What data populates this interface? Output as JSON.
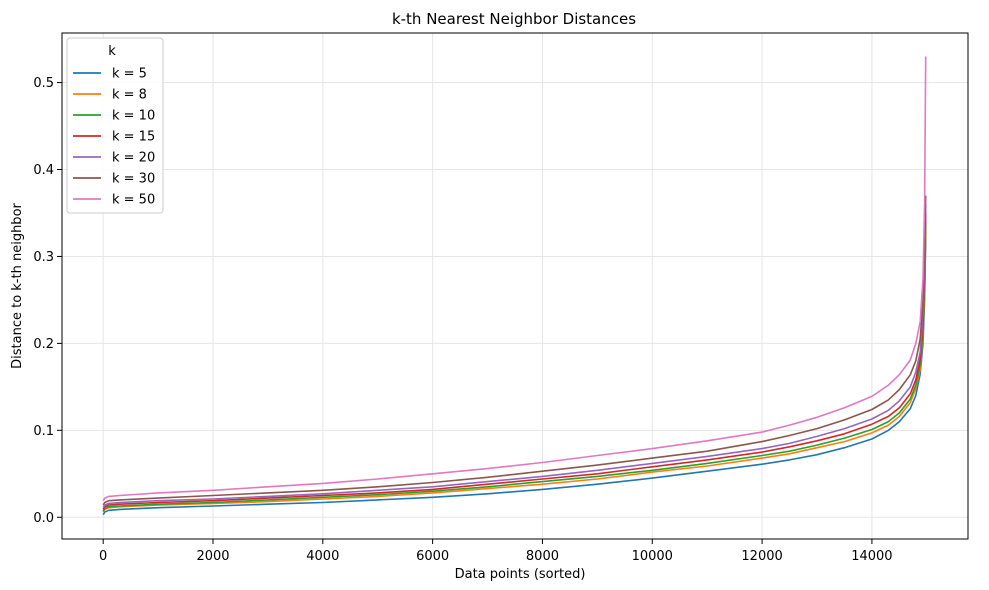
{
  "chart_data": {
    "type": "line",
    "title": "k-th Nearest Neighbor Distances",
    "xlabel": "Data points (sorted)",
    "ylabel": "Distance to k-th neighbor",
    "xlim": [
      -750,
      15750
    ],
    "ylim": [
      -0.025,
      0.557
    ],
    "xticks": [
      0,
      2000,
      4000,
      6000,
      8000,
      10000,
      12000,
      14000
    ],
    "yticks": [
      0.0,
      0.1,
      0.2,
      0.3,
      0.4,
      0.5
    ],
    "xtick_labels": [
      "0",
      "2000",
      "4000",
      "6000",
      "8000",
      "10000",
      "12000",
      "14000"
    ],
    "ytick_labels": [
      "0.0",
      "0.1",
      "0.2",
      "0.3",
      "0.4",
      "0.5"
    ],
    "grid": true,
    "legend": {
      "title": "k",
      "placement": "top-left"
    },
    "x": [
      0,
      30,
      100,
      300,
      1000,
      2000,
      3000,
      4000,
      5000,
      6000,
      7000,
      8000,
      9000,
      10000,
      11000,
      12000,
      12500,
      13000,
      13500,
      14000,
      14300,
      14500,
      14700,
      14800,
      14880,
      14930,
      14960,
      14980
    ],
    "series": [
      {
        "name": "k = 5",
        "color": "#1f77b4",
        "values": [
          0.003,
          0.006,
          0.008,
          0.009,
          0.011,
          0.013,
          0.015,
          0.017,
          0.02,
          0.023,
          0.027,
          0.032,
          0.038,
          0.045,
          0.053,
          0.061,
          0.066,
          0.072,
          0.08,
          0.09,
          0.1,
          0.11,
          0.125,
          0.14,
          0.165,
          0.2,
          0.25,
          0.32
        ]
      },
      {
        "name": "k = 8",
        "color": "#ff7f0e",
        "values": [
          0.006,
          0.009,
          0.011,
          0.012,
          0.014,
          0.016,
          0.018,
          0.021,
          0.024,
          0.028,
          0.033,
          0.038,
          0.044,
          0.052,
          0.059,
          0.068,
          0.073,
          0.08,
          0.087,
          0.097,
          0.106,
          0.116,
          0.132,
          0.148,
          0.17,
          0.21,
          0.26,
          0.33
        ]
      },
      {
        "name": "k = 10",
        "color": "#2ca02c",
        "values": [
          0.007,
          0.01,
          0.012,
          0.013,
          0.015,
          0.017,
          0.02,
          0.023,
          0.026,
          0.03,
          0.035,
          0.041,
          0.047,
          0.054,
          0.062,
          0.071,
          0.076,
          0.083,
          0.091,
          0.101,
          0.11,
          0.12,
          0.136,
          0.152,
          0.175,
          0.215,
          0.265,
          0.34
        ]
      },
      {
        "name": "k = 15",
        "color": "#d62728",
        "values": [
          0.009,
          0.012,
          0.014,
          0.015,
          0.017,
          0.019,
          0.022,
          0.025,
          0.028,
          0.032,
          0.038,
          0.044,
          0.05,
          0.058,
          0.066,
          0.075,
          0.081,
          0.088,
          0.096,
          0.107,
          0.116,
          0.126,
          0.142,
          0.158,
          0.182,
          0.225,
          0.28,
          0.35
        ]
      },
      {
        "name": "k = 20",
        "color": "#9467bd",
        "values": [
          0.011,
          0.014,
          0.016,
          0.017,
          0.019,
          0.021,
          0.024,
          0.027,
          0.031,
          0.035,
          0.041,
          0.047,
          0.054,
          0.062,
          0.07,
          0.079,
          0.085,
          0.093,
          0.102,
          0.113,
          0.123,
          0.134,
          0.15,
          0.167,
          0.19,
          0.235,
          0.29,
          0.36
        ]
      },
      {
        "name": "k = 30",
        "color": "#8c564b",
        "values": [
          0.014,
          0.017,
          0.019,
          0.02,
          0.022,
          0.025,
          0.028,
          0.031,
          0.035,
          0.04,
          0.046,
          0.053,
          0.06,
          0.068,
          0.076,
          0.087,
          0.094,
          0.102,
          0.112,
          0.124,
          0.135,
          0.147,
          0.164,
          0.18,
          0.205,
          0.25,
          0.31,
          0.37
        ]
      },
      {
        "name": "k = 50",
        "color": "#e377c2",
        "values": [
          0.019,
          0.022,
          0.024,
          0.025,
          0.028,
          0.031,
          0.035,
          0.039,
          0.044,
          0.05,
          0.056,
          0.063,
          0.071,
          0.079,
          0.088,
          0.098,
          0.106,
          0.115,
          0.126,
          0.139,
          0.152,
          0.164,
          0.181,
          0.2,
          0.225,
          0.275,
          0.36,
          0.53
        ]
      }
    ]
  }
}
